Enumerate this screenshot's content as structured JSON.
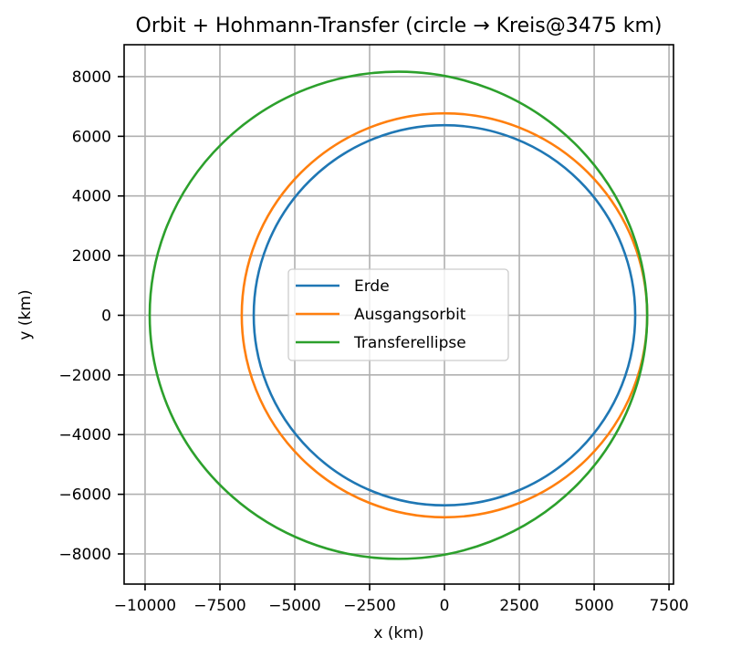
{
  "chart_data": {
    "type": "line",
    "title": "Orbit + Hohmann-Transfer (circle → Kreis@3475 km)",
    "xlabel": "x (km)",
    "ylabel": "y (km)",
    "xlim": [
      -10700,
      7650
    ],
    "ylim": [
      -9010,
      9070
    ],
    "grid": true,
    "aspect": "equal",
    "legend_position": "center",
    "x_ticks": [
      -10000,
      -7500,
      -5000,
      -2500,
      0,
      2500,
      5000,
      7500
    ],
    "x_tick_labels": [
      "−10000",
      "−7500",
      "−5000",
      "−2500",
      "0",
      "2500",
      "5000",
      "7500"
    ],
    "y_ticks": [
      8000,
      6000,
      4000,
      2000,
      0,
      -2000,
      -4000,
      -6000,
      -8000
    ],
    "y_tick_labels": [
      "8000",
      "6000",
      "4000",
      "2000",
      "0",
      "−2000",
      "−4000",
      "−6000",
      "−8000"
    ],
    "series": [
      {
        "name": "Erde",
        "shape": "circle",
        "center": [
          0,
          0
        ],
        "radius": 6371,
        "color": "#1f77b4"
      },
      {
        "name": "Ausgangsorbit",
        "shape": "circle",
        "center": [
          0,
          0
        ],
        "radius": 6771,
        "color": "#ff7f0e"
      },
      {
        "name": "Transferellipse",
        "shape": "ellipse",
        "center": [
          -1537.5,
          0
        ],
        "semi_major": 8308.5,
        "semi_minor": 8165,
        "periapsis": 6771,
        "apoapsis": -9846,
        "color": "#2ca02c"
      }
    ]
  }
}
